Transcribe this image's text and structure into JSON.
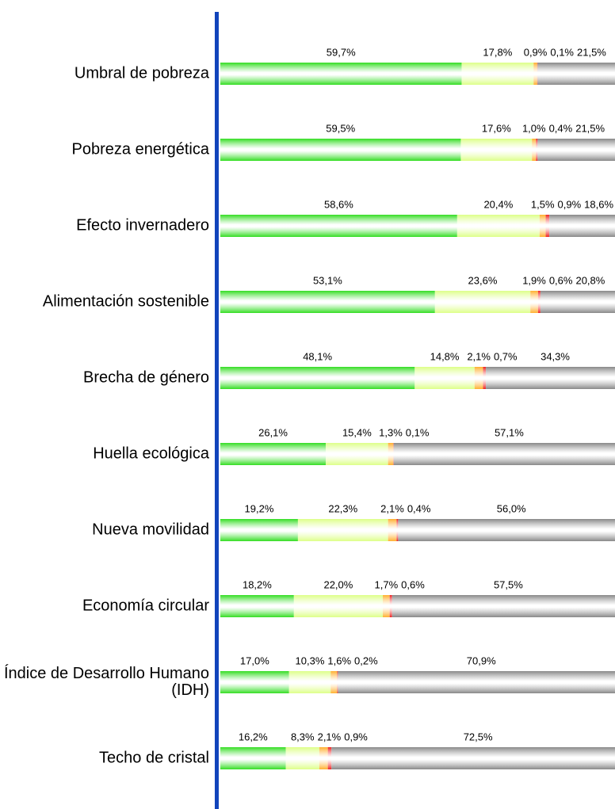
{
  "chart_data": {
    "type": "stacked-bar-horizontal",
    "categories": [
      "Umbral de pobreza",
      "Pobreza energética",
      "Efecto invernadero",
      "Alimentación sostenible",
      "Brecha de género",
      "Huella ecológica",
      "Nueva movilidad",
      "Economía circular",
      "Índice de Desarrollo Humano (IDH)",
      "Techo de cristal"
    ],
    "series": [
      {
        "color": "#33dd22",
        "values": [
          59.7,
          59.5,
          58.6,
          53.1,
          48.1,
          26.1,
          19.2,
          18.2,
          17.0,
          16.2
        ],
        "value_labels": [
          "59,7%",
          "59,5%",
          "58,6%",
          "53,1%",
          "48,1%",
          "26,1%",
          "19,2%",
          "18,2%",
          "17,0%",
          "16,2%"
        ]
      },
      {
        "color": "#ddff88",
        "values": [
          17.8,
          17.6,
          20.4,
          23.6,
          14.8,
          15.4,
          22.3,
          22.0,
          10.3,
          8.3
        ],
        "value_labels": [
          "17,8%",
          "17,6%",
          "20,4%",
          "23,6%",
          "14,8%",
          "15,4%",
          "22,3%",
          "22,0%",
          "10,3%",
          "8,3%"
        ]
      },
      {
        "color": "#ffb030",
        "values": [
          0.9,
          1.0,
          1.5,
          1.9,
          2.1,
          1.3,
          2.1,
          1.7,
          1.6,
          2.1
        ],
        "value_labels": [
          "0,9%",
          "1,0%",
          "1,5%",
          "1,9%",
          "2,1%",
          "1,3%",
          "2,1%",
          "1,7%",
          "1,6%",
          "2,1%"
        ]
      },
      {
        "color": "#ee2222",
        "values": [
          0.1,
          0.4,
          0.9,
          0.6,
          0.7,
          0.1,
          0.4,
          0.6,
          0.2,
          0.9
        ],
        "value_labels": [
          "0,1%",
          "0,4%",
          "0,9%",
          "0,6%",
          "0,7%",
          "0,1%",
          "0,4%",
          "0,6%",
          "0,2%",
          "0,9%"
        ]
      },
      {
        "color": "#888888",
        "values": [
          21.5,
          21.5,
          18.6,
          20.8,
          34.3,
          57.1,
          56.0,
          57.5,
          70.9,
          72.5
        ],
        "value_labels": [
          "21,5%",
          "21,5%",
          "18,6%",
          "20,8%",
          "34,3%",
          "57,1%",
          "56,0%",
          "57,5%",
          "70,9%",
          "72,5%"
        ]
      }
    ]
  }
}
